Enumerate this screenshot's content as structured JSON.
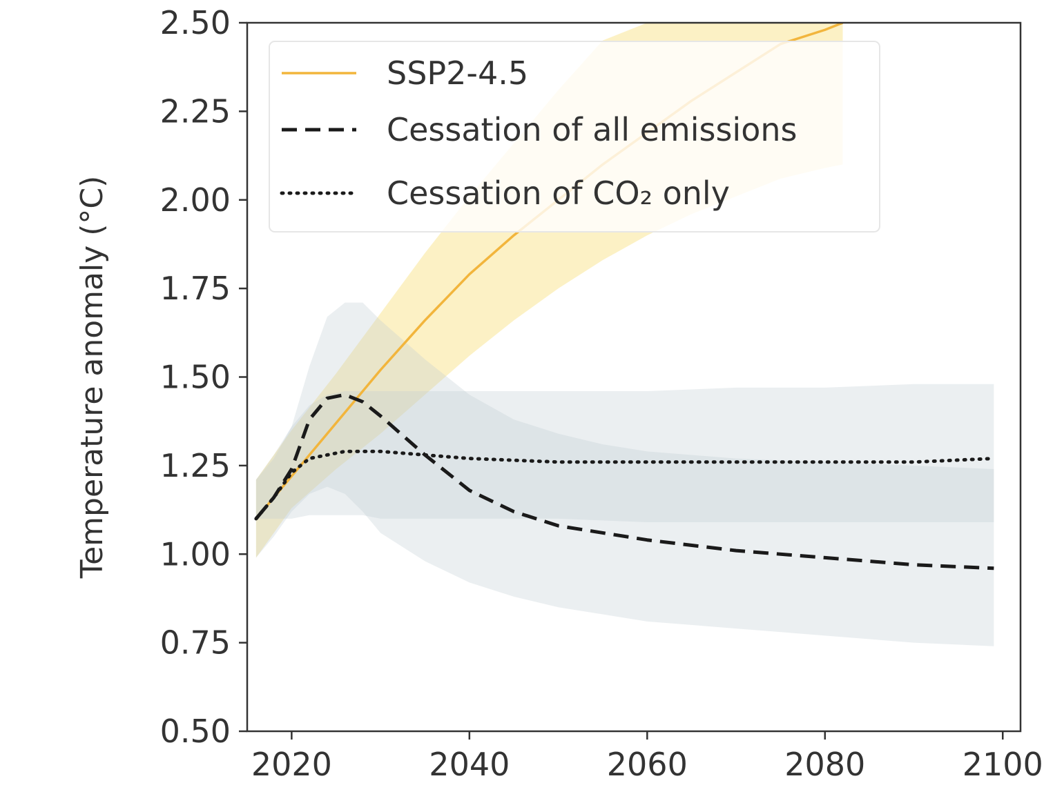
{
  "chart_data": {
    "type": "line",
    "title": "",
    "xlabel": "",
    "ylabel": "Temperature anomaly (°C)",
    "xlim": [
      2015,
      2102
    ],
    "ylim": [
      0.5,
      2.5
    ],
    "x_ticks": [
      "2020",
      "2040",
      "2060",
      "2080",
      "2100"
    ],
    "y_ticks": [
      "0.50",
      "0.75",
      "1.00",
      "1.25",
      "1.50",
      "1.75",
      "2.00",
      "2.25",
      "2.50"
    ],
    "grid": false,
    "legend_position": "top-left",
    "colors": {
      "ssp": "#f2b53c",
      "ssp_band": "#fbe9a6",
      "cessation_band": "#c2cdd3",
      "black": "#1a1a1a"
    },
    "series": [
      {
        "name": "SSP2-4.5",
        "style": "solid",
        "x": [
          2016,
          2020,
          2025,
          2030,
          2035,
          2040,
          2045,
          2050,
          2055,
          2060,
          2065,
          2070,
          2075,
          2080,
          2082
        ],
        "y": [
          1.1,
          1.22,
          1.37,
          1.52,
          1.66,
          1.79,
          1.9,
          2.0,
          2.1,
          2.19,
          2.28,
          2.36,
          2.44,
          2.48,
          2.5
        ],
        "band_lower": [
          0.99,
          1.13,
          1.24,
          1.34,
          1.45,
          1.56,
          1.66,
          1.75,
          1.83,
          1.9,
          1.96,
          2.01,
          2.06,
          2.09,
          2.1
        ],
        "band_upper": [
          1.21,
          1.35,
          1.51,
          1.68,
          1.85,
          2.01,
          2.16,
          2.31,
          2.45,
          2.5,
          2.5,
          2.5,
          2.5,
          2.5,
          2.5
        ]
      },
      {
        "name": "Cessation of all emissions",
        "style": "dashed",
        "x": [
          2016,
          2018,
          2020,
          2022,
          2024,
          2026,
          2028,
          2030,
          2035,
          2040,
          2045,
          2050,
          2055,
          2060,
          2070,
          2080,
          2090,
          2099
        ],
        "y": [
          1.1,
          1.16,
          1.24,
          1.38,
          1.44,
          1.45,
          1.43,
          1.39,
          1.28,
          1.18,
          1.12,
          1.08,
          1.06,
          1.04,
          1.01,
          0.99,
          0.97,
          0.96
        ],
        "band_lower": [
          0.99,
          1.05,
          1.12,
          1.17,
          1.19,
          1.17,
          1.12,
          1.06,
          0.98,
          0.92,
          0.88,
          0.85,
          0.83,
          0.81,
          0.79,
          0.77,
          0.75,
          0.74
        ],
        "band_upper": [
          1.21,
          1.27,
          1.36,
          1.53,
          1.67,
          1.71,
          1.71,
          1.66,
          1.55,
          1.45,
          1.38,
          1.34,
          1.31,
          1.29,
          1.27,
          1.26,
          1.25,
          1.24
        ]
      },
      {
        "name": "Cessation of CO₂ only",
        "style": "dotted",
        "x": [
          2016,
          2018,
          2020,
          2022,
          2024,
          2026,
          2028,
          2030,
          2035,
          2040,
          2050,
          2060,
          2070,
          2080,
          2090,
          2099
        ],
        "y": [
          1.1,
          1.16,
          1.23,
          1.27,
          1.28,
          1.29,
          1.29,
          1.29,
          1.28,
          1.27,
          1.26,
          1.26,
          1.26,
          1.26,
          1.26,
          1.27
        ],
        "band_lower": [
          1.1,
          1.1,
          1.1,
          1.11,
          1.11,
          1.11,
          1.11,
          1.1,
          1.1,
          1.1,
          1.1,
          1.09,
          1.09,
          1.09,
          1.09,
          1.09
        ],
        "band_upper": [
          1.21,
          1.28,
          1.36,
          1.42,
          1.45,
          1.46,
          1.46,
          1.46,
          1.46,
          1.46,
          1.46,
          1.46,
          1.47,
          1.47,
          1.48,
          1.48
        ]
      }
    ]
  }
}
